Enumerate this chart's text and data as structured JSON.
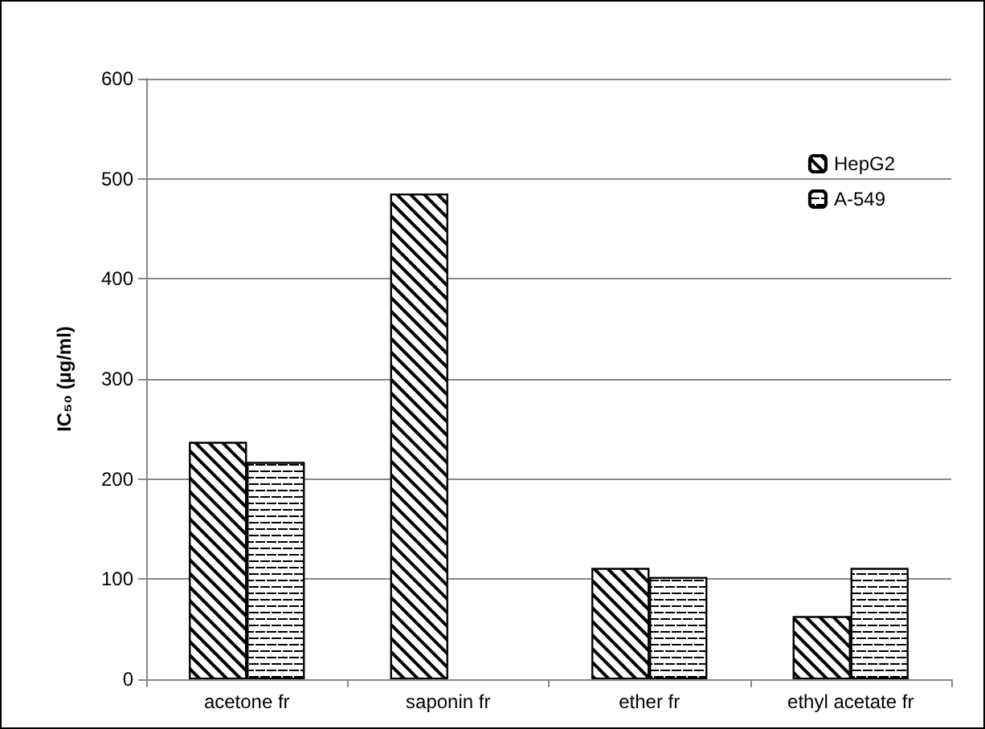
{
  "chart_data": {
    "type": "bar",
    "ylabel": "IC₅₀ (µg/ml)",
    "categories": [
      "acetone fr",
      "saponin fr",
      "ether fr",
      "ethyl acetate fr"
    ],
    "series": [
      {
        "name": "HepG2",
        "color": "#000000",
        "values": [
          237,
          485,
          111,
          63
        ]
      },
      {
        "name": "A-549",
        "color": "#000000",
        "values": [
          217,
          null,
          102,
          111
        ]
      }
    ],
    "ylim": [
      0,
      600
    ],
    "yticks": [
      0,
      100,
      200,
      300,
      400,
      500,
      600
    ],
    "grid": "y",
    "legend": "top right"
  }
}
